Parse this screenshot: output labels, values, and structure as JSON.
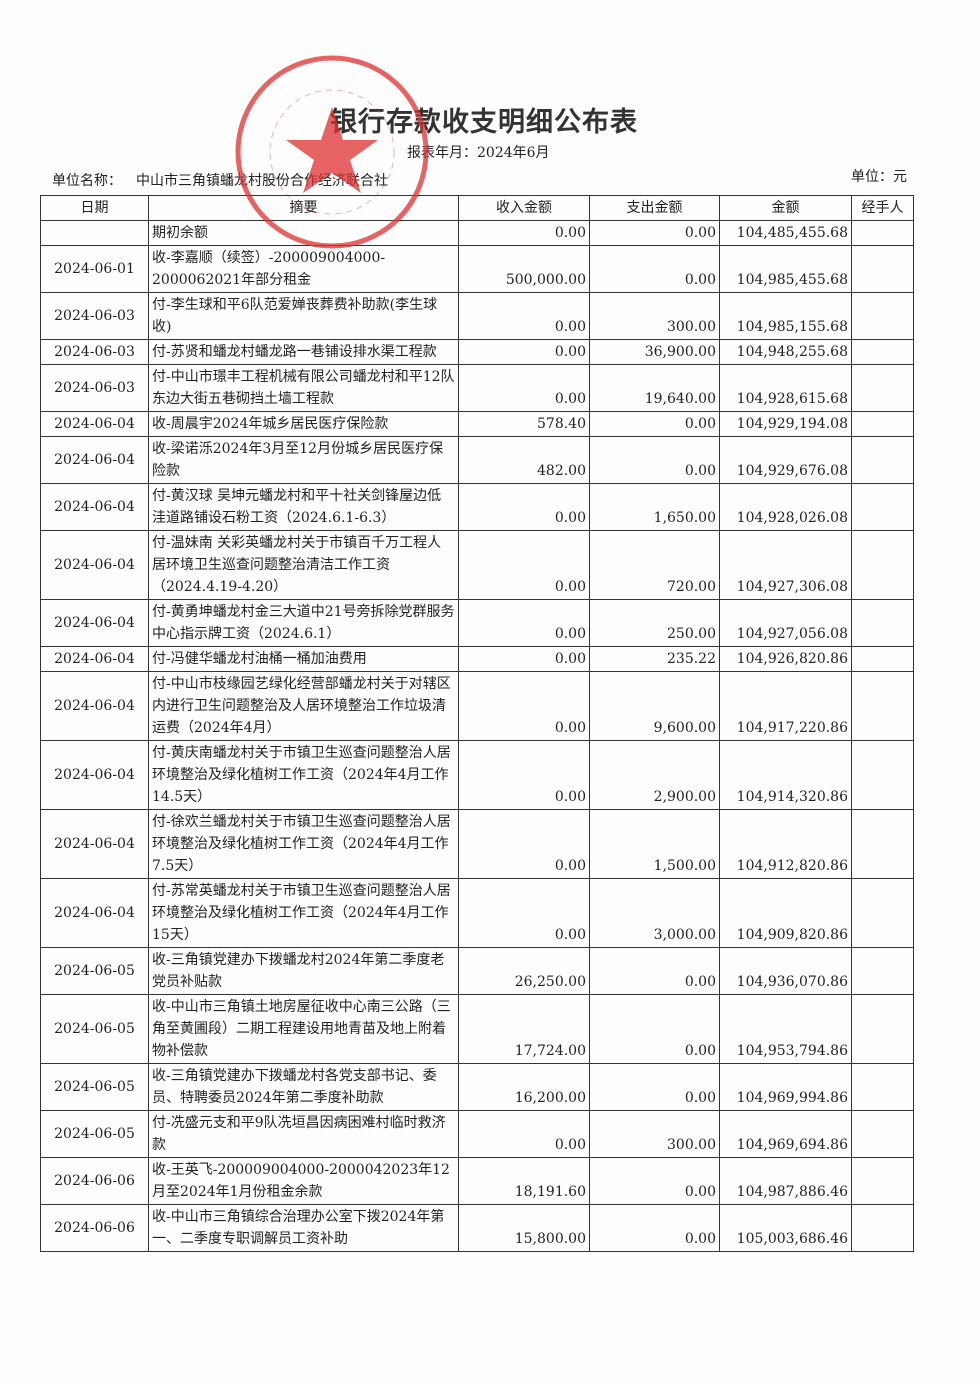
{
  "title": "银行存款收支明细公布表",
  "period": "报表年月：2024年6月",
  "unit_name_label": "单位名称：",
  "unit_name": "中山市三角镇蟠龙村股份合作经济联合社",
  "currency_unit": "单位：元",
  "stamp": {
    "text": "中山市三角镇蟠龙村股份合作经济联合社",
    "color": "#e03030"
  },
  "columns": [
    "日期",
    "摘要",
    "收入金额",
    "支出金额",
    "金额",
    "经手人"
  ],
  "rows": [
    {
      "date": "",
      "desc": "期初余额",
      "income": "0.00",
      "expense": "0.00",
      "balance": "104,485,455.68",
      "handler": ""
    },
    {
      "date": "2024-06-01",
      "desc": "收-李嘉顺（续签）-200009004000-2000062021年部分租金",
      "income": "500,000.00",
      "expense": "0.00",
      "balance": "104,985,455.68",
      "handler": ""
    },
    {
      "date": "2024-06-03",
      "desc": "付-李生球和平6队范爱婵丧葬费补助款(李生球收)",
      "income": "0.00",
      "expense": "300.00",
      "balance": "104,985,155.68",
      "handler": ""
    },
    {
      "date": "2024-06-03",
      "desc": "付-苏贤和蟠龙村蟠龙路一巷铺设排水渠工程款",
      "income": "0.00",
      "expense": "36,900.00",
      "balance": "104,948,255.68",
      "handler": ""
    },
    {
      "date": "2024-06-03",
      "desc": "付-中山市璟丰工程机械有限公司蟠龙村和平12队东边大街五巷砌挡土墙工程款",
      "income": "0.00",
      "expense": "19,640.00",
      "balance": "104,928,615.68",
      "handler": ""
    },
    {
      "date": "2024-06-04",
      "desc": "收-周晨宇2024年城乡居民医疗保险款",
      "income": "578.40",
      "expense": "0.00",
      "balance": "104,929,194.08",
      "handler": ""
    },
    {
      "date": "2024-06-04",
      "desc": "收-梁诺泺2024年3月至12月份城乡居民医疗保险款",
      "income": "482.00",
      "expense": "0.00",
      "balance": "104,929,676.08",
      "handler": ""
    },
    {
      "date": "2024-06-04",
      "desc": "付-黄汉球 吴坤元蟠龙村和平十社关剑锋屋边低洼道路铺设石粉工资（2024.6.1-6.3）",
      "income": "0.00",
      "expense": "1,650.00",
      "balance": "104,928,026.08",
      "handler": ""
    },
    {
      "date": "2024-06-04",
      "desc": "付-温妹南 关彩英蟠龙村关于市镇百千万工程人居环境卫生巡查问题整治清洁工作工资（2024.4.19-4.20）",
      "income": "0.00",
      "expense": "720.00",
      "balance": "104,927,306.08",
      "handler": ""
    },
    {
      "date": "2024-06-04",
      "desc": "付-黄勇坤蟠龙村金三大道中21号旁拆除党群服务中心指示牌工资（2024.6.1）",
      "income": "0.00",
      "expense": "250.00",
      "balance": "104,927,056.08",
      "handler": ""
    },
    {
      "date": "2024-06-04",
      "desc": "付-冯健华蟠龙村油桶一桶加油费用",
      "income": "0.00",
      "expense": "235.22",
      "balance": "104,926,820.86",
      "handler": ""
    },
    {
      "date": "2024-06-04",
      "desc": "付-中山市枝缘园艺绿化经营部蟠龙村关于对辖区内进行卫生问题整治及人居环境整治工作垃圾清运费（2024年4月）",
      "income": "0.00",
      "expense": "9,600.00",
      "balance": "104,917,220.86",
      "handler": ""
    },
    {
      "date": "2024-06-04",
      "desc": "付-黄庆南蟠龙村关于市镇卫生巡查问题整治人居环境整治及绿化植树工作工资（2024年4月工作14.5天）",
      "income": "0.00",
      "expense": "2,900.00",
      "balance": "104,914,320.86",
      "handler": ""
    },
    {
      "date": "2024-06-04",
      "desc": "付-徐欢兰蟠龙村关于市镇卫生巡查问题整治人居环境整治及绿化植树工作工资（2024年4月工作7.5天）",
      "income": "0.00",
      "expense": "1,500.00",
      "balance": "104,912,820.86",
      "handler": ""
    },
    {
      "date": "2024-06-04",
      "desc": "付-苏常英蟠龙村关于市镇卫生巡查问题整治人居环境整治及绿化植树工作工资（2024年4月工作15天）",
      "income": "0.00",
      "expense": "3,000.00",
      "balance": "104,909,820.86",
      "handler": ""
    },
    {
      "date": "2024-06-05",
      "desc": "收-三角镇党建办下拨蟠龙村2024年第二季度老党员补贴款",
      "income": "26,250.00",
      "expense": "0.00",
      "balance": "104,936,070.86",
      "handler": ""
    },
    {
      "date": "2024-06-05",
      "desc": "收-中山市三角镇土地房屋征收中心南三公路（三角至黄圃段）二期工程建设用地青苗及地上附着物补偿款",
      "income": "17,724.00",
      "expense": "0.00",
      "balance": "104,953,794.86",
      "handler": ""
    },
    {
      "date": "2024-06-05",
      "desc": "收-三角镇党建办下拨蟠龙村各党支部书记、委员、特聘委员2024年第二季度补助款",
      "income": "16,200.00",
      "expense": "0.00",
      "balance": "104,969,994.86",
      "handler": ""
    },
    {
      "date": "2024-06-05",
      "desc": "付-冼盛元支和平9队冼垣昌因病困难村临时救济款",
      "income": "0.00",
      "expense": "300.00",
      "balance": "104,969,694.86",
      "handler": ""
    },
    {
      "date": "2024-06-06",
      "desc": "收-王英飞-200009004000-2000042023年12月至2024年1月份租金余款",
      "income": "18,191.60",
      "expense": "0.00",
      "balance": "104,987,886.46",
      "handler": ""
    },
    {
      "date": "2024-06-06",
      "desc": "收-中山市三角镇综合治理办公室下拨2024年第一、二季度专职调解员工资补助",
      "income": "15,800.00",
      "expense": "0.00",
      "balance": "105,003,686.46",
      "handler": ""
    }
  ]
}
